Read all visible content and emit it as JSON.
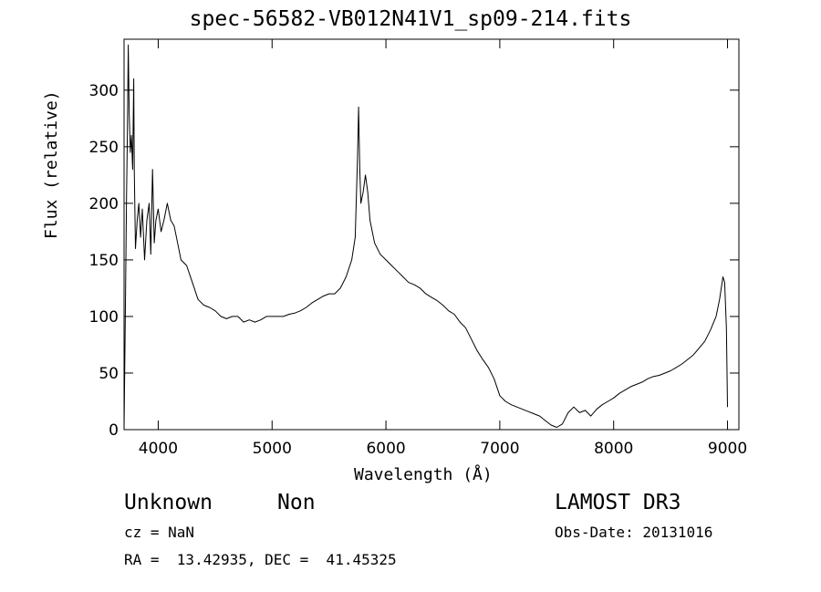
{
  "header": {
    "title": "spec-56582-VB012N41V1_sp09-214.fits"
  },
  "info": {
    "classification": "Unknown",
    "subclass": "Non",
    "survey": "LAMOST DR3",
    "cz": "cz = NaN",
    "obs_date": "Obs-Date: 20131016",
    "coords": "RA =  13.42935, DEC =  41.45325"
  },
  "chart_data": {
    "type": "line",
    "title": "spec-56582-VB012N41V1_sp09-214.fits",
    "xlabel": "Wavelength (Å)",
    "ylabel": "Flux (relative)",
    "xlim": [
      3700,
      9100
    ],
    "ylim": [
      0,
      345
    ],
    "xticks": [
      4000,
      5000,
      6000,
      7000,
      8000,
      9000
    ],
    "yticks": [
      0,
      50,
      100,
      150,
      200,
      250,
      300
    ],
    "grid": false,
    "series": [
      {
        "values": [
          [
            3700,
            0
          ],
          [
            3712,
            110
          ],
          [
            3722,
            205
          ],
          [
            3730,
            265
          ],
          [
            3737,
            340
          ],
          [
            3745,
            280
          ],
          [
            3755,
            245
          ],
          [
            3765,
            260
          ],
          [
            3775,
            230
          ],
          [
            3785,
            310
          ],
          [
            3790,
            230
          ],
          [
            3800,
            160
          ],
          [
            3815,
            185
          ],
          [
            3830,
            200
          ],
          [
            3845,
            170
          ],
          [
            3860,
            195
          ],
          [
            3880,
            150
          ],
          [
            3900,
            185
          ],
          [
            3920,
            200
          ],
          [
            3935,
            155
          ],
          [
            3950,
            230
          ],
          [
            3965,
            165
          ],
          [
            3980,
            185
          ],
          [
            4000,
            195
          ],
          [
            4025,
            175
          ],
          [
            4050,
            185
          ],
          [
            4080,
            200
          ],
          [
            4110,
            185
          ],
          [
            4140,
            180
          ],
          [
            4170,
            165
          ],
          [
            4200,
            150
          ],
          [
            4250,
            145
          ],
          [
            4300,
            130
          ],
          [
            4350,
            115
          ],
          [
            4400,
            110
          ],
          [
            4450,
            108
          ],
          [
            4500,
            105
          ],
          [
            4550,
            100
          ],
          [
            4600,
            98
          ],
          [
            4650,
            100
          ],
          [
            4700,
            100
          ],
          [
            4750,
            95
          ],
          [
            4800,
            97
          ],
          [
            4850,
            95
          ],
          [
            4900,
            97
          ],
          [
            4950,
            100
          ],
          [
            5000,
            100
          ],
          [
            5050,
            100
          ],
          [
            5100,
            100
          ],
          [
            5150,
            102
          ],
          [
            5200,
            103
          ],
          [
            5250,
            105
          ],
          [
            5300,
            108
          ],
          [
            5350,
            112
          ],
          [
            5400,
            115
          ],
          [
            5450,
            118
          ],
          [
            5500,
            120
          ],
          [
            5550,
            120
          ],
          [
            5600,
            125
          ],
          [
            5650,
            135
          ],
          [
            5700,
            150
          ],
          [
            5730,
            170
          ],
          [
            5750,
            240
          ],
          [
            5760,
            285
          ],
          [
            5770,
            230
          ],
          [
            5780,
            200
          ],
          [
            5800,
            210
          ],
          [
            5820,
            225
          ],
          [
            5840,
            210
          ],
          [
            5860,
            185
          ],
          [
            5880,
            175
          ],
          [
            5900,
            165
          ],
          [
            5950,
            155
          ],
          [
            6000,
            150
          ],
          [
            6050,
            145
          ],
          [
            6100,
            140
          ],
          [
            6150,
            135
          ],
          [
            6200,
            130
          ],
          [
            6250,
            128
          ],
          [
            6300,
            125
          ],
          [
            6350,
            120
          ],
          [
            6400,
            117
          ],
          [
            6450,
            114
          ],
          [
            6500,
            110
          ],
          [
            6550,
            105
          ],
          [
            6600,
            102
          ],
          [
            6650,
            95
          ],
          [
            6700,
            90
          ],
          [
            6750,
            80
          ],
          [
            6800,
            70
          ],
          [
            6850,
            62
          ],
          [
            6900,
            55
          ],
          [
            6950,
            45
          ],
          [
            7000,
            30
          ],
          [
            7050,
            25
          ],
          [
            7100,
            22
          ],
          [
            7150,
            20
          ],
          [
            7200,
            18
          ],
          [
            7250,
            16
          ],
          [
            7300,
            14
          ],
          [
            7350,
            12
          ],
          [
            7400,
            8
          ],
          [
            7450,
            4
          ],
          [
            7500,
            2
          ],
          [
            7550,
            5
          ],
          [
            7600,
            15
          ],
          [
            7650,
            20
          ],
          [
            7700,
            15
          ],
          [
            7750,
            17
          ],
          [
            7800,
            12
          ],
          [
            7850,
            18
          ],
          [
            7900,
            22
          ],
          [
            7950,
            25
          ],
          [
            8000,
            28
          ],
          [
            8050,
            32
          ],
          [
            8100,
            35
          ],
          [
            8150,
            38
          ],
          [
            8200,
            40
          ],
          [
            8250,
            42
          ],
          [
            8300,
            45
          ],
          [
            8350,
            47
          ],
          [
            8400,
            48
          ],
          [
            8450,
            50
          ],
          [
            8500,
            52
          ],
          [
            8550,
            55
          ],
          [
            8600,
            58
          ],
          [
            8650,
            62
          ],
          [
            8700,
            66
          ],
          [
            8750,
            72
          ],
          [
            8800,
            78
          ],
          [
            8850,
            88
          ],
          [
            8900,
            100
          ],
          [
            8930,
            115
          ],
          [
            8960,
            135
          ],
          [
            8975,
            130
          ],
          [
            8990,
            90
          ],
          [
            9000,
            20
          ]
        ]
      }
    ]
  }
}
